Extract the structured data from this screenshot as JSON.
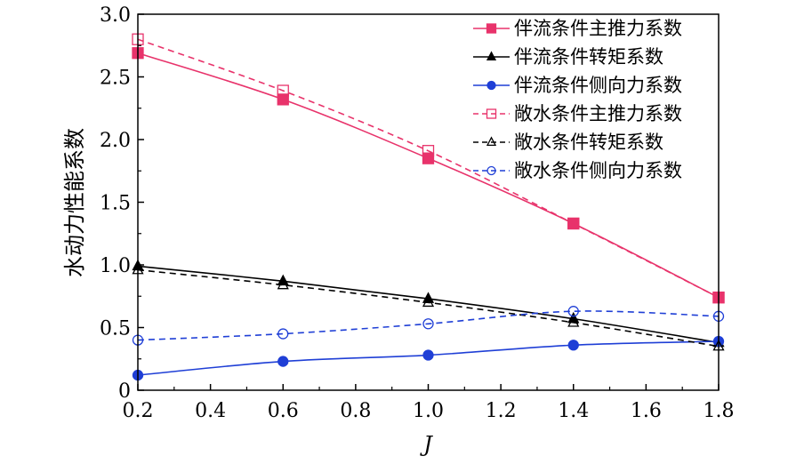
{
  "chart_data": {
    "type": "line",
    "xlabel": "J",
    "ylabel": "水动力性能系数",
    "xlim": [
      0.2,
      1.8
    ],
    "ylim": [
      0,
      3.0
    ],
    "grid": false,
    "legend_position": "top-right",
    "x_ticks": [
      "0.2",
      "0.4",
      "0.6",
      "0.8",
      "1.0",
      "1.2",
      "1.4",
      "1.6",
      "1.8"
    ],
    "y_ticks": [
      "0",
      "0.5",
      "1.0",
      "1.5",
      "2.0",
      "2.5",
      "3.0"
    ],
    "x": [
      0.2,
      0.6,
      1.0,
      1.4,
      1.8
    ],
    "series": [
      {
        "name": "伴流条件主推力系数",
        "values": [
          2.69,
          2.32,
          1.85,
          1.33,
          0.74
        ],
        "color": "#e8336b",
        "dash": "solid",
        "marker": "square-filled"
      },
      {
        "name": "伴流条件转矩系数",
        "values": [
          0.99,
          0.87,
          0.73,
          0.57,
          0.38
        ],
        "color": "#000000",
        "dash": "solid",
        "marker": "triangle-filled"
      },
      {
        "name": "伴流条件侧向力系数",
        "values": [
          0.12,
          0.23,
          0.28,
          0.36,
          0.39
        ],
        "color": "#1f3fd6",
        "dash": "solid",
        "marker": "circle-filled"
      },
      {
        "name": "敞水条件主推力系数",
        "values": [
          2.8,
          2.39,
          1.91,
          1.33,
          0.74
        ],
        "color": "#e8336b",
        "dash": "dashed",
        "marker": "square-open"
      },
      {
        "name": "敞水条件转矩系数",
        "values": [
          0.96,
          0.84,
          0.7,
          0.54,
          0.35
        ],
        "color": "#000000",
        "dash": "dashed",
        "marker": "triangle-open"
      },
      {
        "name": "敞水条件侧向力系数",
        "values": [
          0.4,
          0.45,
          0.53,
          0.63,
          0.59
        ],
        "color": "#1f3fd6",
        "dash": "dashed",
        "marker": "circle-open"
      }
    ]
  }
}
